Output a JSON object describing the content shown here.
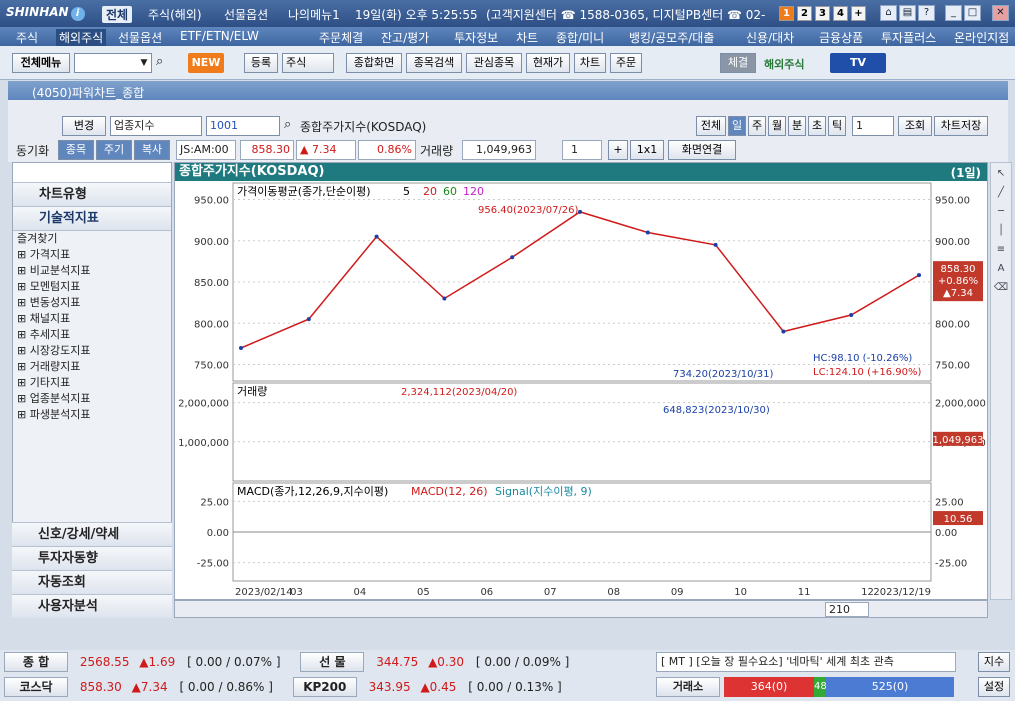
{
  "topbar": {
    "brand": "SHINHAN",
    "tabs": [
      "전체",
      "주식(해외)",
      "선물옵션",
      "나의메뉴1"
    ],
    "active_tab": "전체",
    "datetime": "19일(화) 오후 5:25:55",
    "service_info": "(고객지원센터 ☎ 1588-0365, 디지털PB센터 ☎ 02-",
    "num_buttons": [
      "1",
      "2",
      "3",
      "4",
      "+"
    ]
  },
  "menubar": {
    "items": [
      "주식",
      "해외주식",
      "선물옵션",
      "ETF/ETN/ELW",
      "주문체결",
      "잔고/평가",
      "투자정보",
      "차트",
      "종합/미니",
      "뱅킹/공모주/대출",
      "신용/대차",
      "금융상품",
      "투자플러스",
      "온라인지점"
    ],
    "active": "해외주식"
  },
  "toolbar": {
    "all_menu": "전체메뉴",
    "new_badge": "NEW",
    "buttons": [
      "등록",
      "주식",
      "종합화면",
      "종목검색",
      "관심종목",
      "현재가",
      "차트",
      "주문"
    ],
    "fill_label": "체결",
    "overseas_label": "해외주식",
    "tv_label": "TV"
  },
  "window": {
    "title": "(4050)파워차트_종합"
  },
  "controls": {
    "change_label": "변경",
    "sector_select": "업종지수",
    "code": "1001",
    "name": "종합주가지수(KOSDAQ)",
    "period_buttons": [
      "전체",
      "일",
      "주",
      "월",
      "분",
      "초",
      "틱"
    ],
    "active_period": "일",
    "count": "1",
    "query_button": "조회",
    "save_button": "차트저장",
    "sync_label": "동기화",
    "sync_buttons": [
      "종목",
      "주기",
      "복사"
    ],
    "time_code": "JS:AM:00",
    "price": "858.30",
    "change": "▲ 7.34",
    "change_pct": "0.86%",
    "volume_label": "거래량",
    "volume": "1,049,963",
    "qty": "1",
    "ratio": "1x1",
    "link_button": "화면연결"
  },
  "left_panel": {
    "header_chart_type": "차트유형",
    "header_indicators": "기술적지표",
    "tree": [
      "즐겨찾기",
      "가격지표",
      "비교분석지표",
      "모멘텀지표",
      "변동성지표",
      "채널지표",
      "추세지표",
      "시장강도지표",
      "거래량지표",
      "기타지표",
      "업종분석지표",
      "파생분석지표"
    ],
    "bottom_items": [
      "신호/강세/약세",
      "투자자동향",
      "자동조회",
      "사용자분석"
    ]
  },
  "chart": {
    "title": "종합주가지수(KOSDAQ)",
    "period_badge": "(1일)",
    "ma_legend": "가격이동평균(종가,단순이평)",
    "ma_periods": [
      "5",
      "20",
      "60",
      "120"
    ],
    "ma_colors": [
      "#000000",
      "#d01a1a",
      "#1a8a1a",
      "#c81ec8"
    ],
    "high_annot": "956.40(2023/07/26)",
    "low_annot": "734.20(2023/10/31)",
    "hc_annot": "HC:98.10 (-10.26%)",
    "lc_annot": "LC:124.10 (+16.90%)",
    "price_badge": [
      "858.30",
      "+0.86%",
      "▲7.34"
    ],
    "vol_legend": "거래량",
    "vol_high_annot": "2,324,112(2023/04/20)",
    "vol_low_annot": "648,823(2023/10/30)",
    "vol_badge": "1,049,963",
    "macd_legend": "MACD(종가,12,26,9,지수이평)",
    "macd_label": "MACD(12, 26)",
    "signal_label": "Signal(지수이평, 9)",
    "macd_badge": "10.56",
    "x_labels": [
      "2023/02/14",
      "03",
      "04",
      "05",
      "06",
      "07",
      "08",
      "09",
      "10",
      "11",
      "12",
      "2023/12/19"
    ],
    "y_price_labels": [
      "950.00",
      "900.00",
      "850.00",
      "800.00",
      "750.00"
    ],
    "y_vol_labels": [
      "2,000,000",
      "1,000,000"
    ],
    "y_macd_labels": [
      "25.00",
      "0.00",
      "-25.00"
    ],
    "zoom_count": "210"
  },
  "chart_data": {
    "type": "line",
    "x": [
      "2023/02",
      "2023/03",
      "2023/04",
      "2023/05",
      "2023/06",
      "2023/07",
      "2023/08",
      "2023/09",
      "2023/10",
      "2023/11",
      "2023/12"
    ],
    "series": [
      {
        "name": "종합주가지수(KOSDAQ)",
        "values": [
          770,
          805,
          905,
          830,
          880,
          935,
          910,
          895,
          790,
          810,
          858.3
        ]
      }
    ],
    "ylim": [
      730,
      970
    ]
  },
  "status": {
    "row1": {
      "label1": "종 합",
      "v1": "2568.55",
      "c1": "▲1.69",
      "p1": "[ 0.00  / 0.07% ]",
      "label2": "선 물",
      "v2": "344.75",
      "c2": "▲0.30",
      "p2": "[ 0.00  / 0.09% ]",
      "news": "[ MT ] [오늘 장 필수요소] '네마틱' 세계 최초 관측",
      "btn": "지수"
    },
    "row2": {
      "label1": "코스닥",
      "v1": "858.30",
      "c1": "▲7.34",
      "p1": "[ 0.00  / 0.86% ]",
      "label2": "KP200",
      "v2": "343.95",
      "c2": "▲0.45",
      "p2": "[ 0.00  / 0.13% ]",
      "label3": "거래소",
      "up": "364(0)",
      "flat": "48",
      "down": "525(0)",
      "btn": "설정"
    }
  }
}
